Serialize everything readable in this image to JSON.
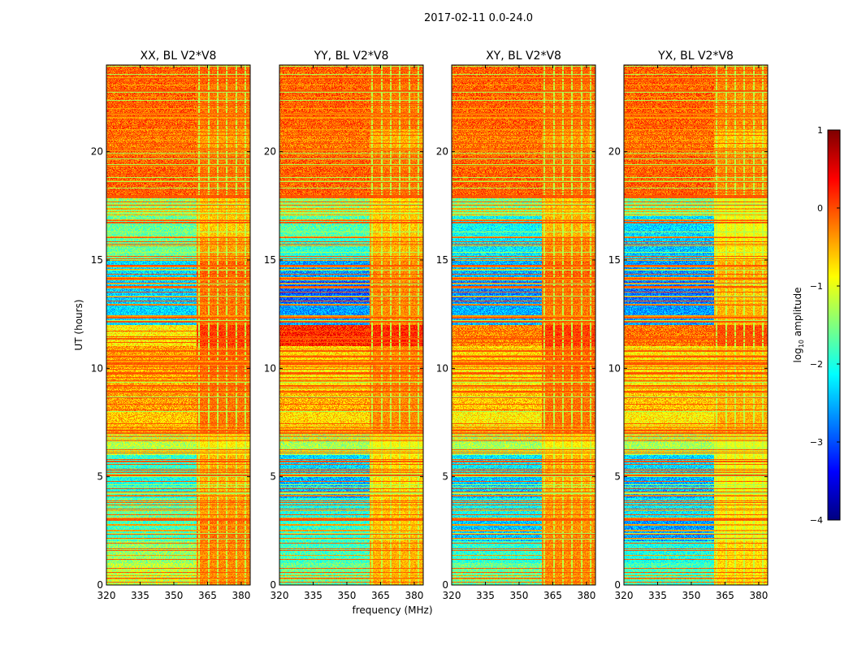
{
  "chart_data": {
    "type": "heatmap",
    "suptitle": "2017-02-11 0.0-24.0",
    "xlabel": "frequency (MHz)",
    "ylabel": "UT (hours)",
    "xlim": [
      320,
      384
    ],
    "ylim": [
      0,
      24
    ],
    "xticks": [
      320,
      335,
      350,
      365,
      380
    ],
    "yticks": [
      0,
      5,
      10,
      15,
      20
    ],
    "colormap": "jet",
    "colorbar": {
      "label_prefix": "log",
      "label_sub": "10",
      "label_suffix": " amplitude",
      "range": [
        -4,
        1
      ],
      "ticks": [
        1,
        0,
        -1,
        -2,
        -3,
        -4
      ],
      "tick_labels": [
        "1",
        "0",
        "−1",
        "−2",
        "−3",
        "−4"
      ]
    },
    "band_edge_MHz": 360,
    "panels": [
      {
        "title": "XX, BL V2*V8",
        "hourly_mean_low": [
          -1.2,
          -1.4,
          -1.8,
          -1.6,
          -2.0,
          -1.9,
          -1.2,
          -0.6,
          -0.4,
          -0.5,
          -0.4,
          -0.8,
          -2.3,
          -2.4,
          -2.3,
          -1.6,
          -1.6,
          -1.4,
          -0.1,
          -0.1,
          -0.2,
          -0.1,
          -0.1,
          -0.1
        ],
        "hourly_mean_high": [
          -0.3,
          -0.3,
          -0.2,
          -0.4,
          -0.5,
          -0.5,
          -0.8,
          -0.2,
          -0.2,
          -0.2,
          -0.1,
          0.1,
          -0.2,
          -0.2,
          -0.1,
          -0.4,
          -0.6,
          -0.6,
          -0.2,
          -0.2,
          -0.4,
          -0.2,
          -0.2,
          -0.1
        ]
      },
      {
        "title": "YY, BL V2*V8",
        "hourly_mean_low": [
          -1.6,
          -1.8,
          -1.9,
          -2.0,
          -2.5,
          -2.3,
          -1.3,
          -0.7,
          -0.5,
          -0.8,
          -0.7,
          0.2,
          -2.6,
          -2.9,
          -2.6,
          -1.9,
          -1.7,
          -1.4,
          -0.1,
          -0.1,
          -0.2,
          -0.1,
          -0.1,
          -0.1
        ],
        "hourly_mean_high": [
          -0.5,
          -0.5,
          -0.6,
          -0.6,
          -0.7,
          -0.7,
          -0.9,
          -0.3,
          -0.3,
          -0.3,
          -0.3,
          0.2,
          -0.3,
          -0.3,
          -0.3,
          -0.5,
          -0.6,
          -0.7,
          -0.2,
          -0.2,
          -0.5,
          -0.2,
          -0.2,
          -0.1
        ]
      },
      {
        "title": "XY, BL V2*V8",
        "hourly_mean_low": [
          -1.6,
          -1.9,
          -2.4,
          -2.1,
          -2.4,
          -2.2,
          -1.3,
          -0.8,
          -0.6,
          -0.8,
          -0.7,
          -0.3,
          -2.5,
          -2.7,
          -2.5,
          -2.2,
          -2.1,
          -1.5,
          -0.1,
          -0.1,
          -0.2,
          -0.1,
          -0.1,
          -0.1
        ],
        "hourly_mean_high": [
          -0.3,
          -0.3,
          -0.3,
          -0.4,
          -0.5,
          -0.5,
          -0.8,
          -0.2,
          -0.2,
          -0.2,
          -0.1,
          0.1,
          -0.2,
          -0.2,
          -0.1,
          -0.3,
          -0.5,
          -0.6,
          -0.2,
          -0.2,
          -0.4,
          -0.2,
          -0.2,
          -0.1
        ]
      },
      {
        "title": "YX, BL V2*V8",
        "hourly_mean_low": [
          -1.8,
          -2.0,
          -2.6,
          -2.2,
          -2.5,
          -2.3,
          -1.3,
          -0.8,
          -0.6,
          -0.8,
          -0.8,
          -0.2,
          -2.6,
          -2.8,
          -2.6,
          -2.4,
          -2.3,
          -1.5,
          -0.1,
          -0.1,
          -0.2,
          -0.1,
          -0.1,
          -0.1
        ],
        "hourly_mean_high": [
          -0.7,
          -0.7,
          -0.9,
          -0.8,
          -0.9,
          -0.9,
          -1.0,
          -0.5,
          -0.5,
          -0.6,
          -0.6,
          0.0,
          -0.5,
          -0.6,
          -0.5,
          -0.8,
          -0.9,
          -1.0,
          -0.3,
          -0.3,
          -0.6,
          -0.3,
          -0.3,
          -0.2
        ]
      }
    ]
  }
}
